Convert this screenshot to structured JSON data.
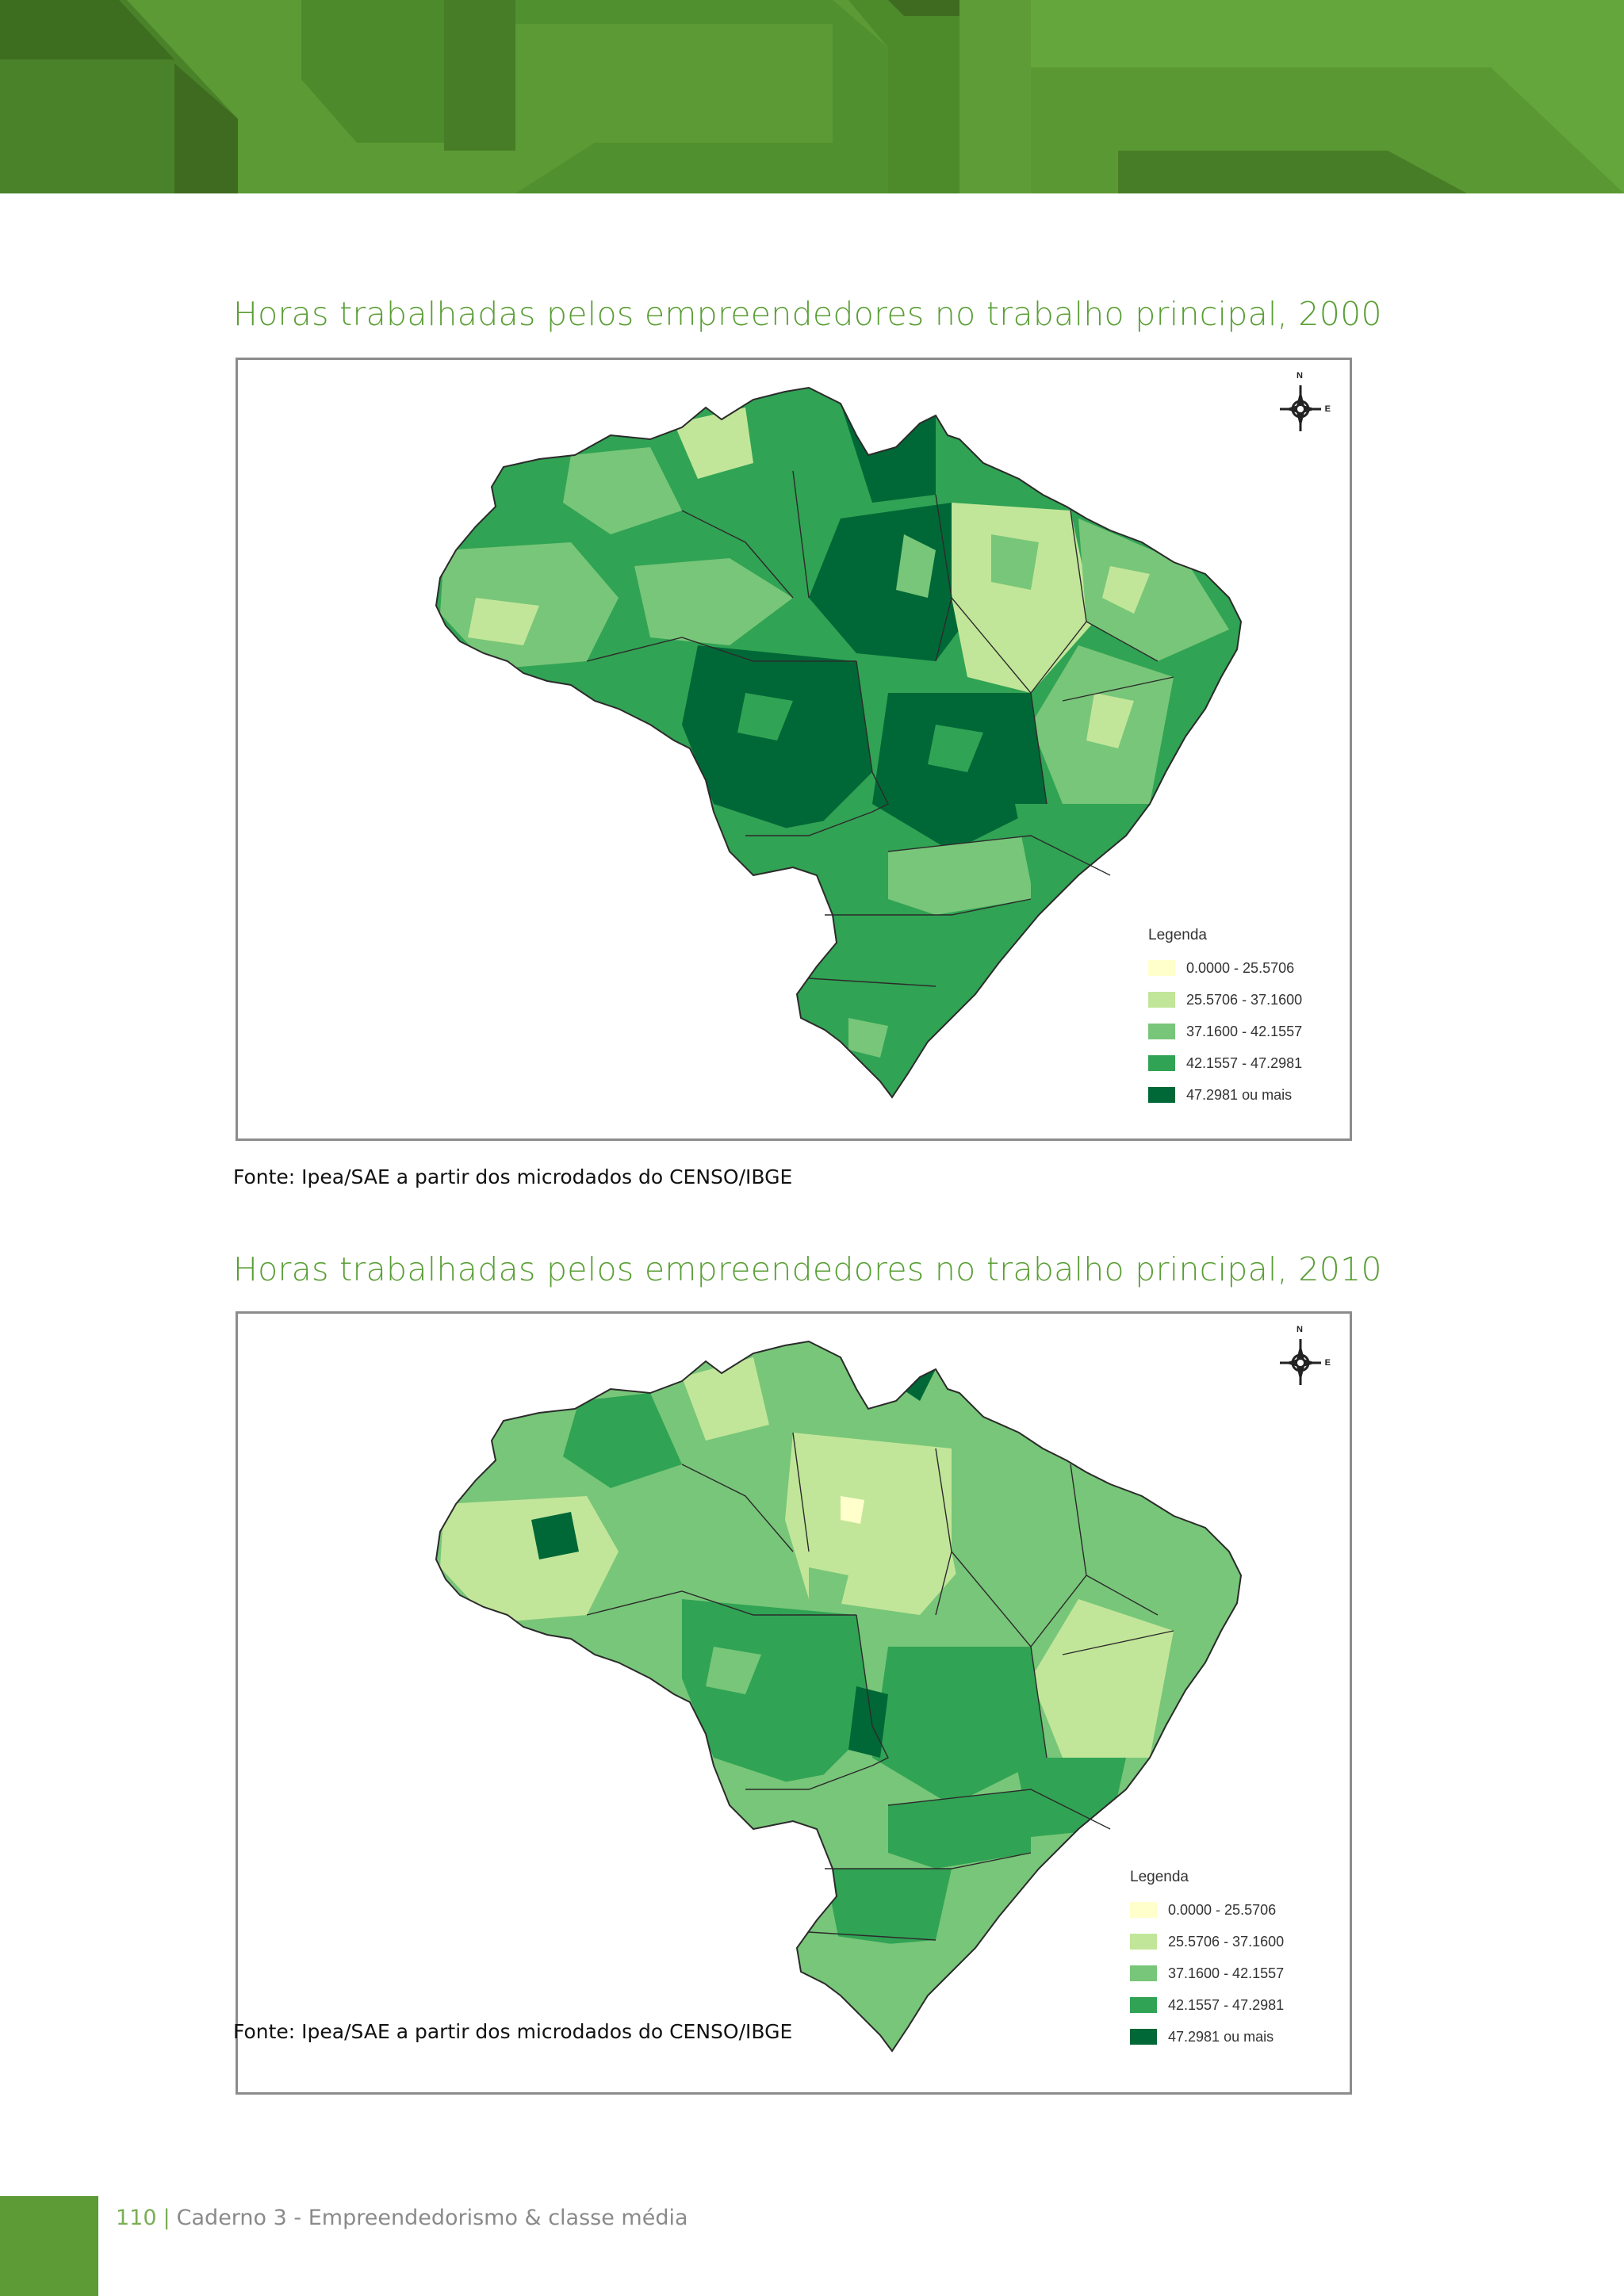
{
  "header": {
    "colors": [
      "#3e6b1f",
      "#4a7f28",
      "#5b9a34",
      "#69a93e"
    ]
  },
  "sections": [
    {
      "title": "Horas trabalhadas pelos empreendedores no trabalho principal, 2000",
      "legend": {
        "title": "Legenda",
        "items": [
          {
            "label": "0.0000 - 25.5706",
            "color": "#ffffcc"
          },
          {
            "label": "25.5706 - 37.1600",
            "color": "#c2e699"
          },
          {
            "label": "37.1600 - 42.1557",
            "color": "#78c679"
          },
          {
            "label": "42.1557 - 47.2981",
            "color": "#31a354"
          },
          {
            "label": "47.2981 ou mais",
            "color": "#006837"
          }
        ]
      },
      "source": "Fonte: Ipea/SAE a partir dos microdados do CENSO/IBGE",
      "compass": {
        "north": "N",
        "east": "E"
      }
    },
    {
      "title": "Horas trabalhadas pelos empreendedores no trabalho principal, 2010",
      "legend": {
        "title": "Legenda",
        "items": [
          {
            "label": "0.0000 - 25.5706",
            "color": "#ffffcc"
          },
          {
            "label": "25.5706 - 37.1600",
            "color": "#c2e699"
          },
          {
            "label": "37.1600 - 42.1557",
            "color": "#78c679"
          },
          {
            "label": "42.1557 - 47.2981",
            "color": "#31a354"
          },
          {
            "label": "47.2981 ou mais",
            "color": "#006837"
          }
        ]
      },
      "source": "Fonte: Ipea/SAE a partir dos microdados do CENSO/IBGE",
      "compass": {
        "north": "N",
        "east": "E"
      }
    }
  ],
  "footer": {
    "page_number": "110",
    "separator": "|",
    "text": "Caderno 3 - Empreendedorismo & classe média"
  }
}
